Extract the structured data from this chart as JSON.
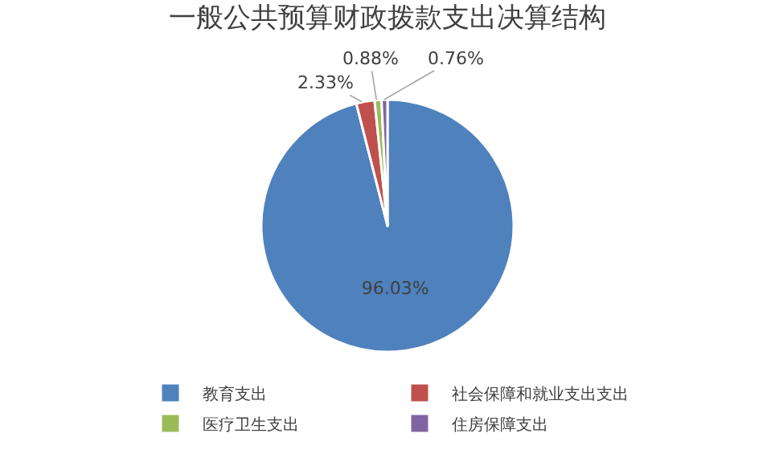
{
  "chart_data": {
    "type": "pie",
    "title": "一般公共预算财政拨款支出决算结构",
    "categories": [
      "教育支出",
      "社会保障和就业支出支出",
      "医疗卫生支出",
      "住房保障支出"
    ],
    "values": [
      96.03,
      2.33,
      0.88,
      0.76
    ],
    "colors": [
      "#4f81bd",
      "#c0504d",
      "#9bbb59",
      "#8064a2"
    ],
    "value_labels": [
      "96.03%",
      "2.33%",
      "0.88%",
      "0.76%"
    ],
    "legend": "bottom"
  }
}
